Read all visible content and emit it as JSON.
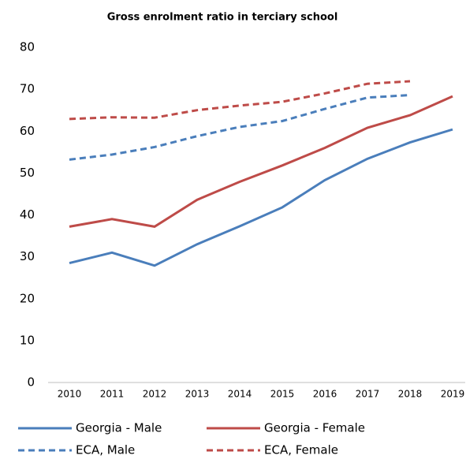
{
  "chart_data": {
    "type": "line",
    "title": "Gross enrolment ratio in terciary school",
    "categories": [
      "2010",
      "2011",
      "2012",
      "2013",
      "2014",
      "2015",
      "2016",
      "2017",
      "2018",
      "2019"
    ],
    "series": [
      {
        "name": "Georgia - Male",
        "color": "#4a7ebb",
        "dashed": false,
        "values": [
          28.5,
          31,
          27.9,
          33,
          37.3,
          41.8,
          48.3,
          53.4,
          57.3,
          60.4
        ]
      },
      {
        "name": "Georgia - Female",
        "color": "#be4b48",
        "dashed": false,
        "values": [
          37.2,
          39,
          37.2,
          43.6,
          47.9,
          51.8,
          56,
          60.8,
          63.8,
          68.3
        ]
      },
      {
        "name": "ECA, Male",
        "color": "#4a7ebb",
        "dashed": true,
        "values": [
          53.2,
          54.4,
          56.2,
          58.8,
          61,
          62.4,
          65.3,
          68,
          68.6,
          null
        ]
      },
      {
        "name": "ECA, Female",
        "color": "#be4b48",
        "dashed": true,
        "values": [
          62.9,
          63.3,
          63.2,
          65,
          66.1,
          67,
          69,
          71.3,
          71.9,
          null
        ]
      }
    ],
    "ylim": [
      0,
      80
    ],
    "yticks": [
      0,
      10,
      20,
      30,
      40,
      50,
      60,
      70,
      80
    ],
    "grid": false
  }
}
